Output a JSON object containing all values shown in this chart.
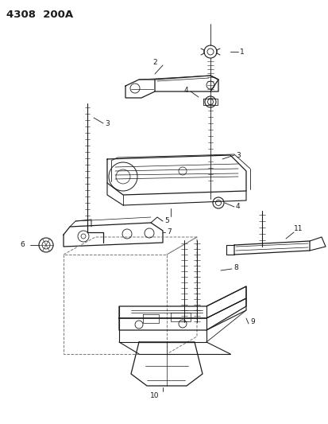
{
  "title": "4308  200A",
  "bg": "#ffffff",
  "lc": "#1a1a1a",
  "figsize": [
    4.14,
    5.33
  ],
  "dpi": 100
}
